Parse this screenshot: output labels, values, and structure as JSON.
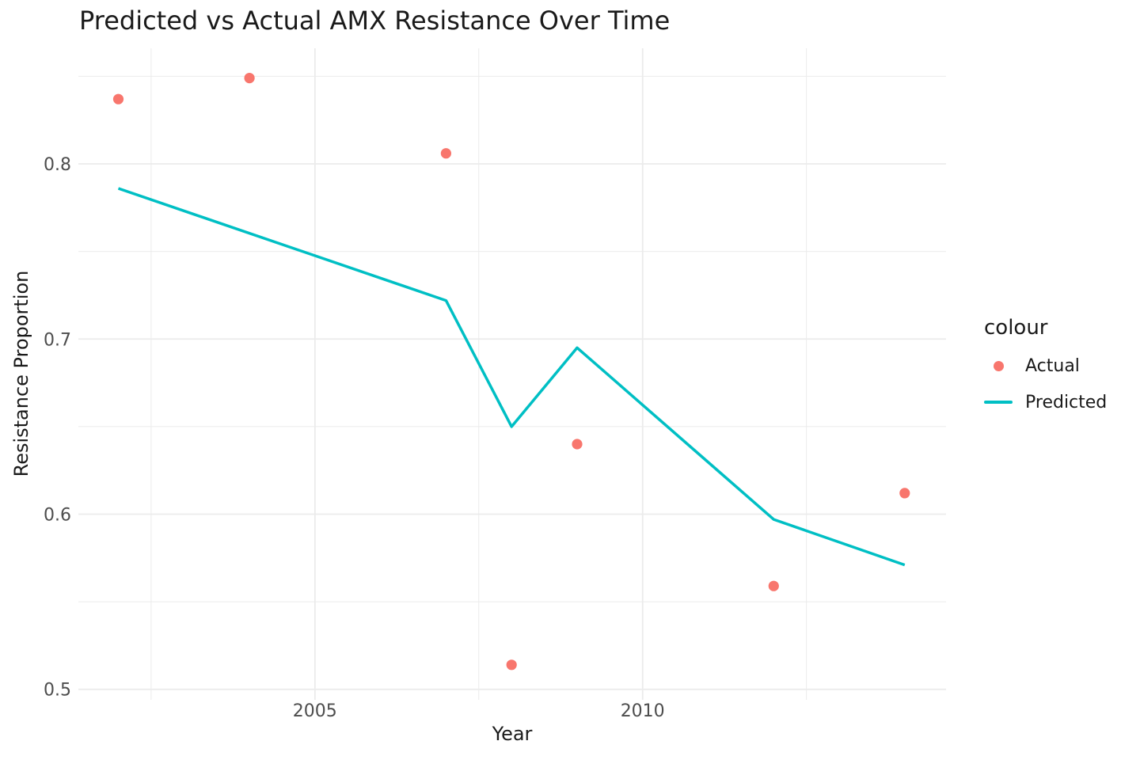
{
  "chart_data": {
    "type": "scatter+line",
    "title": "Predicted vs Actual AMX Resistance Over Time",
    "xlabel": "Year",
    "ylabel": "Resistance Proportion",
    "x_ticks": {
      "values": [
        2005,
        2010
      ],
      "labels": [
        "2005",
        "2010"
      ]
    },
    "y_ticks": {
      "values": [
        0.5,
        0.6,
        0.7,
        0.8
      ],
      "labels": [
        "0.5",
        "0.6",
        "0.7",
        "0.8"
      ]
    },
    "xlim": [
      2001.39,
      2014.63
    ],
    "ylim": [
      0.494,
      0.866
    ],
    "grid": {
      "major": true,
      "minor": true
    },
    "legend": {
      "title": "colour",
      "position": "right",
      "items": [
        {
          "label": "Actual",
          "marker": "point"
        },
        {
          "label": "Predicted",
          "marker": "line"
        }
      ]
    },
    "series": [
      {
        "name": "Actual",
        "geom": "point",
        "color": "#F8766D",
        "x": [
          2002,
          2004,
          2007,
          2008,
          2009,
          2012,
          2014
        ],
        "y": [
          0.837,
          0.849,
          0.806,
          0.514,
          0.64,
          0.559,
          0.612
        ]
      },
      {
        "name": "Predicted",
        "geom": "line",
        "color": "#00BFC4",
        "x": [
          2002,
          2007,
          2008,
          2009,
          2012,
          2014
        ],
        "y": [
          0.786,
          0.722,
          0.65,
          0.695,
          0.597,
          0.571
        ]
      }
    ],
    "colors": {
      "actual": "#F8766D",
      "predicted": "#00BFC4",
      "grid": "#EBEBEB",
      "tick_label": "#4D4D4D",
      "text": "#1A1A1A",
      "background": "#FFFFFF"
    }
  }
}
